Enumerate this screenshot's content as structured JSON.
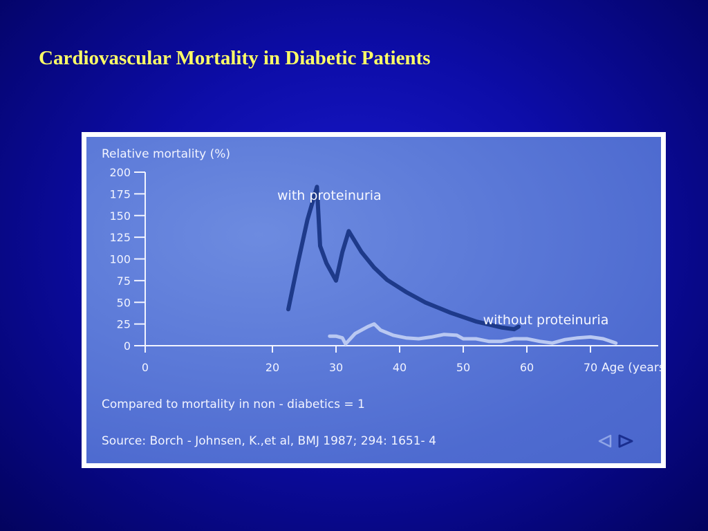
{
  "slide": {
    "title": "Cardiovascular Mortality in Diabetic Patients"
  },
  "figure": {
    "note": "Compared to mortality in non - diabetics = 1",
    "source": "Source: Borch - Johnsen, K.,et al, BMJ 1987; 294: 1651- 4",
    "nav": {
      "prev_icon": "triangle-left-icon",
      "next_icon": "triangle-right-icon"
    }
  },
  "chart_data": {
    "type": "line",
    "title": "",
    "ylabel": "Relative mortality (%)",
    "xlabel": "Age (years)",
    "xlim": [
      0,
      80
    ],
    "ylim": [
      0,
      200
    ],
    "xticks": [
      0,
      20,
      30,
      40,
      50,
      60,
      70
    ],
    "yticks": [
      0,
      25,
      50,
      75,
      100,
      125,
      150,
      175,
      200
    ],
    "grid": false,
    "series": [
      {
        "name": "with proteinuria",
        "color": "#1e3a8a",
        "points": [
          [
            22.5,
            42
          ],
          [
            24,
            95
          ],
          [
            25.5,
            145
          ],
          [
            27,
            183
          ],
          [
            27.5,
            115
          ],
          [
            28.5,
            95
          ],
          [
            30,
            75
          ],
          [
            31,
            108
          ],
          [
            32,
            132
          ],
          [
            34,
            108
          ],
          [
            36,
            90
          ],
          [
            38,
            76
          ],
          [
            41,
            62
          ],
          [
            44,
            50
          ],
          [
            48,
            38
          ],
          [
            52,
            28
          ],
          [
            56,
            21
          ],
          [
            58,
            19
          ],
          [
            58.7,
            22
          ]
        ]
      },
      {
        "name": "without proteinuria",
        "color": "#b9c8f2",
        "points": [
          [
            29,
            11
          ],
          [
            30,
            11
          ],
          [
            31,
            9
          ],
          [
            31.5,
            2
          ],
          [
            33,
            14
          ],
          [
            35,
            22
          ],
          [
            36,
            25
          ],
          [
            37,
            18
          ],
          [
            39,
            12
          ],
          [
            41,
            9
          ],
          [
            43,
            8
          ],
          [
            45,
            10
          ],
          [
            47,
            13
          ],
          [
            49,
            12
          ],
          [
            50,
            8
          ],
          [
            52,
            8
          ],
          [
            54,
            5
          ],
          [
            56,
            5
          ],
          [
            58,
            8
          ],
          [
            60,
            8
          ],
          [
            62,
            5
          ],
          [
            64,
            3
          ],
          [
            66,
            7
          ],
          [
            68,
            9
          ],
          [
            70,
            10
          ],
          [
            72,
            8
          ],
          [
            74,
            3
          ]
        ]
      }
    ]
  }
}
